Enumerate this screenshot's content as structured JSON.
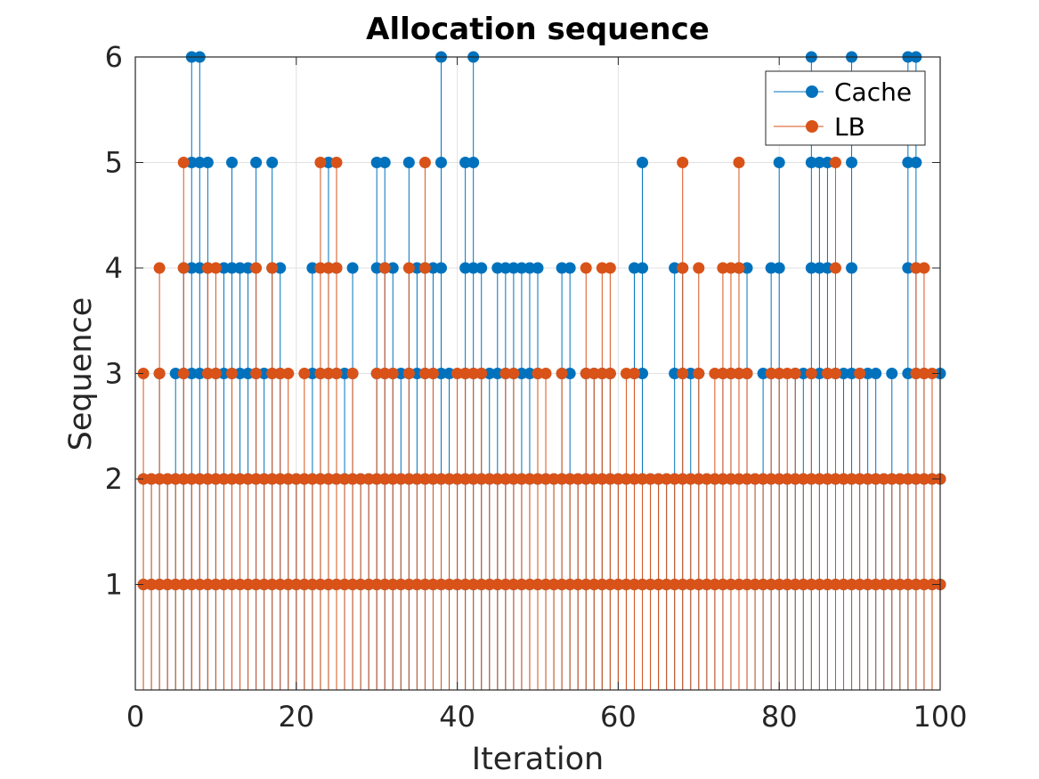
{
  "chart_data": {
    "type": "stem",
    "title": "Allocation sequence",
    "xlabel": "Iteration",
    "ylabel": "Sequence",
    "xlim": [
      0,
      100
    ],
    "ylim": [
      0,
      6
    ],
    "xticks": [
      0,
      20,
      40,
      60,
      80,
      100
    ],
    "yticks": [
      1,
      2,
      3,
      4,
      5,
      6
    ],
    "grid": true,
    "legend_position": "top-right",
    "x": [
      1,
      2,
      3,
      4,
      5,
      6,
      7,
      8,
      9,
      10,
      11,
      12,
      13,
      14,
      15,
      16,
      17,
      18,
      19,
      20,
      21,
      22,
      23,
      24,
      25,
      26,
      27,
      28,
      29,
      30,
      31,
      32,
      33,
      34,
      35,
      36,
      37,
      38,
      39,
      40,
      41,
      42,
      43,
      44,
      45,
      46,
      47,
      48,
      49,
      50,
      51,
      52,
      53,
      54,
      55,
      56,
      57,
      58,
      59,
      60,
      61,
      62,
      63,
      64,
      65,
      66,
      67,
      68,
      69,
      70,
      71,
      72,
      73,
      74,
      75,
      76,
      77,
      78,
      79,
      80,
      81,
      82,
      83,
      84,
      85,
      86,
      87,
      88,
      89,
      90,
      91,
      92,
      93,
      94,
      95,
      96,
      97,
      98,
      99,
      100
    ],
    "series": [
      {
        "name": "Cache",
        "color": "#0072BD",
        "sequences": [
          [
            1,
            2
          ],
          [
            1,
            2
          ],
          [
            1,
            2,
            3
          ],
          [
            1,
            2
          ],
          [
            1,
            2,
            3
          ],
          [
            1,
            2,
            3,
            4
          ],
          [
            1,
            2,
            3,
            4,
            5,
            6
          ],
          [
            1,
            2,
            3,
            4,
            5,
            6
          ],
          [
            1,
            2,
            3,
            4,
            5
          ],
          [
            1,
            2,
            3
          ],
          [
            1,
            2,
            3,
            4
          ],
          [
            1,
            2,
            3,
            4,
            5
          ],
          [
            1,
            2,
            3,
            4
          ],
          [
            1,
            2,
            3,
            4
          ],
          [
            1,
            2,
            3,
            5
          ],
          [
            1,
            2,
            3
          ],
          [
            1,
            2,
            3,
            4,
            5
          ],
          [
            1,
            2,
            3,
            4
          ],
          [
            1,
            2
          ],
          [
            1,
            2
          ],
          [
            1,
            2
          ],
          [
            1,
            2,
            3,
            4
          ],
          [
            1,
            2,
            3
          ],
          [
            1,
            2,
            3,
            4,
            5
          ],
          [
            1,
            2,
            3,
            4
          ],
          [
            1,
            2,
            3
          ],
          [
            1,
            2,
            3,
            4
          ],
          [
            1,
            2
          ],
          [
            1,
            2
          ],
          [
            1,
            2,
            3,
            4,
            5
          ],
          [
            1,
            2,
            3,
            4,
            5
          ],
          [
            1,
            2,
            3,
            4
          ],
          [
            1,
            2,
            3
          ],
          [
            1,
            2,
            3,
            5
          ],
          [
            1,
            2,
            3,
            4
          ],
          [
            1,
            2,
            3,
            4
          ],
          [
            1,
            2,
            3,
            4
          ],
          [
            1,
            2,
            3,
            4,
            5,
            6
          ],
          [
            1,
            2,
            3
          ],
          [
            1,
            2
          ],
          [
            1,
            2,
            3,
            4,
            5
          ],
          [
            1,
            2,
            3,
            4,
            5,
            6
          ],
          [
            1,
            2,
            3,
            4
          ],
          [
            1,
            2,
            3
          ],
          [
            1,
            2,
            3,
            4
          ],
          [
            1,
            2,
            3,
            4
          ],
          [
            1,
            2,
            3,
            4
          ],
          [
            1,
            2,
            3,
            4
          ],
          [
            1,
            2,
            3,
            4
          ],
          [
            1,
            2,
            3,
            4
          ],
          [
            1,
            2
          ],
          [
            1,
            2
          ],
          [
            1,
            2,
            3,
            4
          ],
          [
            1,
            2,
            3,
            4
          ],
          [
            1,
            2
          ],
          [
            1,
            2,
            3
          ],
          [
            1,
            2,
            3
          ],
          [
            1,
            2,
            3
          ],
          [
            1,
            2,
            3
          ],
          [
            1,
            2
          ],
          [
            1,
            2
          ],
          [
            1,
            2,
            3,
            4
          ],
          [
            1,
            2,
            3,
            4,
            5
          ],
          [
            1,
            2
          ],
          [
            1,
            2
          ],
          [
            1,
            2
          ],
          [
            1,
            2,
            3,
            4
          ],
          [
            1,
            2,
            3,
            4
          ],
          [
            1,
            2,
            3
          ],
          [
            1,
            2,
            3
          ],
          [
            1,
            2
          ],
          [
            1,
            2
          ],
          [
            1,
            2,
            3
          ],
          [
            1,
            2,
            3
          ],
          [
            1,
            2,
            3,
            4
          ],
          [
            1,
            2,
            3,
            4
          ],
          [
            1,
            2
          ],
          [
            1,
            2,
            3
          ],
          [
            1,
            2,
            3,
            4
          ],
          [
            1,
            2,
            3,
            4,
            5
          ],
          [
            1,
            2
          ],
          [
            1,
            2,
            3
          ],
          [
            1,
            2,
            3
          ],
          [
            1,
            2,
            3,
            4,
            5,
            6
          ],
          [
            1,
            2,
            3,
            4,
            5
          ],
          [
            1,
            2,
            3,
            4,
            5
          ],
          [
            1,
            2,
            3
          ],
          [
            1,
            2,
            3
          ],
          [
            1,
            2,
            3,
            4,
            5,
            6
          ],
          [
            1,
            2,
            3
          ],
          [
            1,
            2,
            3
          ],
          [
            1,
            2,
            3
          ],
          [
            1,
            2
          ],
          [
            1,
            2,
            3
          ],
          [
            1,
            2
          ],
          [
            1,
            2,
            3,
            4,
            5,
            6
          ],
          [
            1,
            2,
            3,
            4,
            5,
            6
          ],
          [
            1,
            2,
            3
          ],
          [
            1,
            2
          ],
          [
            1,
            2,
            3
          ]
        ]
      },
      {
        "name": "LB",
        "color": "#D95319",
        "sequences": [
          [
            1,
            2,
            3
          ],
          [
            1,
            2
          ],
          [
            1,
            2,
            3,
            4
          ],
          [
            1,
            2
          ],
          [
            1,
            2
          ],
          [
            1,
            2,
            3,
            4,
            5
          ],
          [
            1,
            2
          ],
          [
            1,
            2
          ],
          [
            1,
            2,
            3,
            4
          ],
          [
            1,
            2,
            3,
            4
          ],
          [
            1,
            2
          ],
          [
            1,
            2,
            3
          ],
          [
            1,
            2
          ],
          [
            1,
            2
          ],
          [
            1,
            2,
            3,
            4
          ],
          [
            1,
            2
          ],
          [
            1,
            2,
            3,
            4
          ],
          [
            1,
            2,
            3
          ],
          [
            1,
            2,
            3
          ],
          [
            1,
            2
          ],
          [
            1,
            2,
            3
          ],
          [
            1,
            2
          ],
          [
            1,
            2,
            3,
            4,
            5
          ],
          [
            1,
            2,
            3,
            4
          ],
          [
            1,
            2,
            3,
            4,
            5
          ],
          [
            1,
            2
          ],
          [
            1,
            2,
            3
          ],
          [
            1,
            2
          ],
          [
            1,
            2
          ],
          [
            1,
            2,
            3
          ],
          [
            1,
            2,
            3,
            4
          ],
          [
            1,
            2,
            3
          ],
          [
            1,
            2
          ],
          [
            1,
            2,
            3,
            4
          ],
          [
            1,
            2
          ],
          [
            1,
            2,
            3,
            4,
            5
          ],
          [
            1,
            2,
            3
          ],
          [
            1,
            2
          ],
          [
            1,
            2
          ],
          [
            1,
            2,
            3
          ],
          [
            1,
            2,
            3
          ],
          [
            1,
            2,
            3
          ],
          [
            1,
            2,
            3
          ],
          [
            1,
            2
          ],
          [
            1,
            2
          ],
          [
            1,
            2,
            3
          ],
          [
            1,
            2,
            3
          ],
          [
            1,
            2
          ],
          [
            1,
            2
          ],
          [
            1,
            2,
            3
          ],
          [
            1,
            2,
            3
          ],
          [
            1,
            2
          ],
          [
            1,
            2,
            3
          ],
          [
            1,
            2
          ],
          [
            1,
            2
          ],
          [
            1,
            2,
            3,
            4
          ],
          [
            1,
            2,
            3
          ],
          [
            1,
            2,
            3,
            4
          ],
          [
            1,
            2,
            3,
            4
          ],
          [
            1,
            2
          ],
          [
            1,
            2,
            3
          ],
          [
            1,
            2,
            3
          ],
          [
            1,
            2
          ],
          [
            1,
            2
          ],
          [
            1,
            2
          ],
          [
            1,
            2
          ],
          [
            1,
            2
          ],
          [
            1,
            2,
            3,
            4,
            5
          ],
          [
            1,
            2
          ],
          [
            1,
            2,
            3,
            4
          ],
          [
            1,
            2
          ],
          [
            1,
            2,
            3
          ],
          [
            1,
            2,
            3,
            4
          ],
          [
            1,
            2,
            3,
            4
          ],
          [
            1,
            2,
            3,
            4,
            5
          ],
          [
            1,
            2,
            3
          ],
          [
            1,
            2
          ],
          [
            1,
            2
          ],
          [
            1,
            2,
            3
          ],
          [
            1,
            2,
            3
          ],
          [
            1,
            2,
            3
          ],
          [
            1,
            2,
            3
          ],
          [
            1,
            2
          ],
          [
            1,
            2,
            3
          ],
          [
            1,
            2
          ],
          [
            1,
            2,
            3
          ],
          [
            1,
            2,
            3,
            4,
            5
          ],
          [
            1,
            2
          ],
          [
            1,
            2
          ],
          [
            1,
            2,
            3
          ],
          [
            1,
            2
          ],
          [
            1,
            2
          ],
          [
            1,
            2
          ],
          [
            1,
            2
          ],
          [
            1,
            2
          ],
          [
            1,
            2
          ],
          [
            1,
            2,
            3,
            4
          ],
          [
            1,
            2,
            3,
            4
          ],
          [
            1,
            2,
            3
          ],
          [
            1,
            2
          ]
        ]
      }
    ]
  }
}
